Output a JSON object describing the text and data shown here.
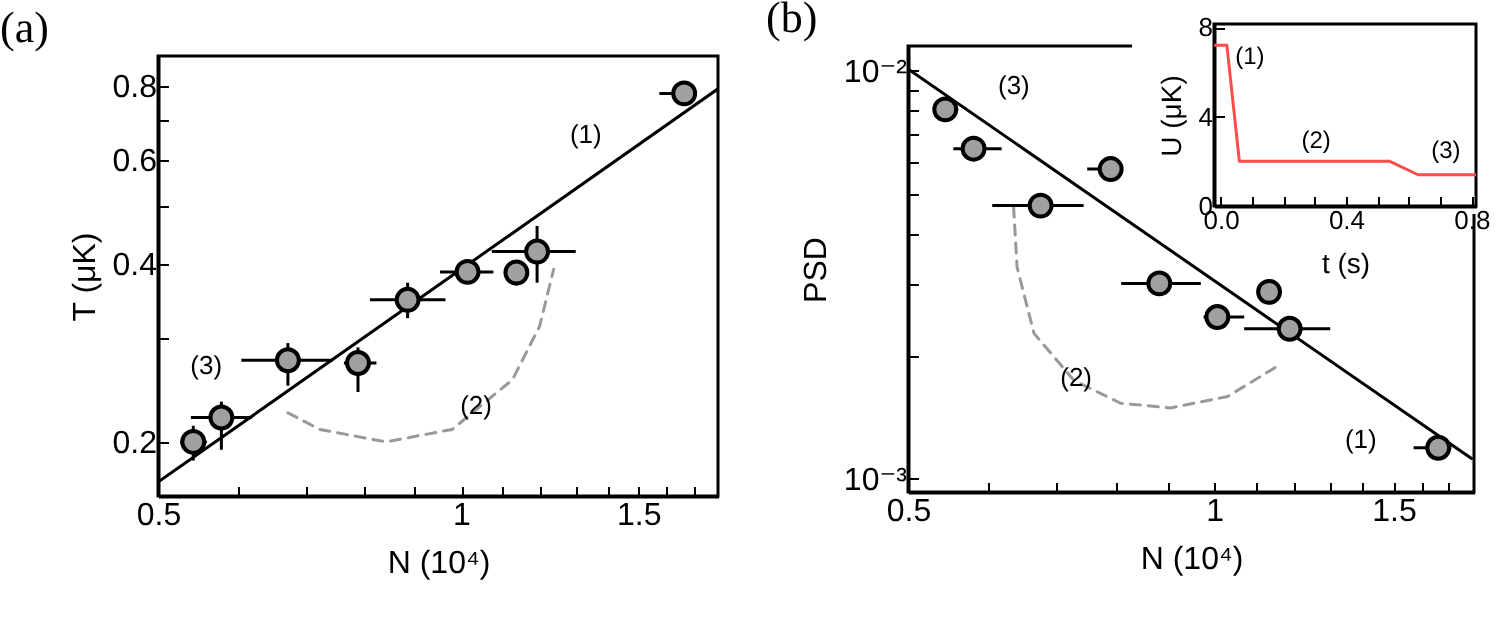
{
  "chart_data": [
    {
      "type": "scatter",
      "title": "(a)",
      "xlabel": "N (10⁴)",
      "ylabel": "T (μK)",
      "log": "xy",
      "xlim": [
        0.5,
        1.8
      ],
      "xticks": [
        0.5,
        {
          "value": 0.6,
          "label": null
        },
        {
          "value": 0.7,
          "label": null
        },
        {
          "value": 0.8,
          "label": null
        },
        {
          "value": 0.9,
          "label": null
        },
        1,
        {
          "value": 1.1,
          "label": null
        },
        {
          "value": 1.2,
          "label": null
        },
        {
          "value": 1.3,
          "label": null
        },
        {
          "value": 1.4,
          "label": null
        },
        1.5,
        {
          "value": 1.6,
          "label": null
        },
        {
          "value": 1.7,
          "label": null
        }
      ],
      "ylim": [
        0.162,
        0.9
      ],
      "yticks": [
        0.2,
        {
          "value": 0.3,
          "label": null
        },
        0.4,
        {
          "value": 0.5,
          "label": null
        },
        0.6,
        {
          "value": 0.7,
          "label": null
        },
        0.8
      ],
      "series": [
        {
          "type": "line",
          "color": "#000000",
          "x": [
            0.5,
            1.8
          ],
          "values": [
            0.171,
            0.792
          ]
        },
        {
          "type": "line",
          "color": "#999999",
          "line_style": "dashed",
          "x": [
            0.673,
            0.724,
            0.842,
            0.98,
            1.125,
            1.197,
            1.236
          ],
          "values": [
            0.224,
            0.21,
            0.2,
            0.21,
            0.255,
            0.314,
            0.392
          ]
        },
        {
          "type": "scatter",
          "marker": "circle",
          "color": "#a0a0a0",
          "x": [
            0.542,
            0.578,
            0.673,
            0.79,
            0.885,
            1.015,
            1.135,
            1.19,
            1.666
          ],
          "values": [
            0.2,
            0.22,
            0.275,
            0.272,
            0.348,
            0.388,
            0.387,
            0.42,
            0.778
          ],
          "errors": [
            [
              0.186,
              0.213
            ],
            [
              0.194,
              0.234
            ],
            [
              0.249,
              0.294
            ],
            [
              0.243,
              0.289
            ],
            [
              0.324,
              0.372
            ],
            [
              0.38,
              0.397
            ],
            [
              0.368,
              0.401
            ],
            [
              0.372,
              0.464
            ],
            null
          ],
          "xerrors": [
            [
              0.526,
              0.559
            ],
            [
              0.539,
              0.62
            ],
            [
              0.605,
              0.746
            ],
            [
              0.765,
              0.824
            ],
            [
              0.812,
              0.965
            ],
            [
              0.953,
              1.077
            ],
            [
              1.11,
              1.16
            ],
            [
              1.073,
              1.3
            ],
            [
              1.574,
              1.712
            ]
          ]
        }
      ],
      "annotations": [
        "(1)",
        "(2)",
        "(3)"
      ]
    },
    {
      "type": "scatter",
      "title": "(b)",
      "xlabel": "N (10⁴)",
      "ylabel": "PSD",
      "log": "xy",
      "xlim": [
        0.5,
        1.8
      ],
      "xticks": [
        0.5,
        {
          "value": 0.6,
          "label": null
        },
        {
          "value": 0.7,
          "label": null
        },
        {
          "value": 0.8,
          "label": null
        },
        {
          "value": 0.9,
          "label": null
        },
        1,
        {
          "value": 1.1,
          "label": null
        },
        {
          "value": 1.2,
          "label": null
        },
        {
          "value": 1.3,
          "label": null
        },
        {
          "value": 1.4,
          "label": null
        },
        1.5,
        {
          "value": 1.6,
          "label": null
        },
        {
          "value": 1.7,
          "label": null
        }
      ],
      "ylim": [
        0.000927,
        0.0115
      ],
      "yticks": [
        {
          "value": 0.001,
          "label": "10⁻³"
        },
        {
          "value": 0.002,
          "label": null
        },
        {
          "value": 0.003,
          "label": null
        },
        {
          "value": 0.004,
          "label": null
        },
        {
          "value": 0.005,
          "label": null
        },
        {
          "value": 0.006,
          "label": null
        },
        {
          "value": 0.007,
          "label": null
        },
        {
          "value": 0.008,
          "label": null
        },
        {
          "value": 0.009,
          "label": null
        },
        {
          "value": 0.01,
          "label": "10⁻²"
        }
      ],
      "series": [
        {
          "type": "line",
          "color": "#000000",
          "x": [
            0.5,
            1.79
          ],
          "values": [
            0.0101,
            0.00112
          ]
        },
        {
          "type": "line",
          "color": "#999999",
          "line_style": "dashed",
          "x": [
            0.635,
            0.64,
            0.665,
            0.728,
            0.809,
            0.906,
            1.031,
            1.163
          ],
          "values": [
            0.00463,
            0.0033,
            0.00227,
            0.00174,
            0.00153,
            0.00149,
            0.00159,
            0.00191
          ]
        },
        {
          "type": "scatter",
          "marker": "circle",
          "color": "#a0a0a0",
          "x": [
            0.544,
            0.58,
            0.675,
            0.791,
            0.883,
            1.007,
            1.132,
            1.186,
            1.66
          ],
          "values": [
            0.00804,
            0.00644,
            0.00467,
            0.00574,
            0.00301,
            0.00249,
            0.00287,
            0.00233,
            0.00119
          ],
          "xerrors": [
            [
              0.53,
              0.56
            ],
            [
              0.554,
              0.618
            ],
            [
              0.605,
              0.744
            ],
            [
              0.75,
              0.81
            ],
            [
              0.81,
              0.97
            ],
            [
              0.976,
              1.07
            ],
            [
              1.11,
              1.16
            ],
            [
              1.07,
              1.3
            ],
            [
              1.57,
              1.71
            ]
          ]
        }
      ],
      "annotations": [
        "(3)",
        "(2)",
        "(1)"
      ]
    },
    {
      "type": "line",
      "xlabel": "t (s)",
      "ylabel": "U (μK)",
      "xlim": [
        -0.021,
        0.815
      ],
      "xticks": [
        {
          "value": 0,
          "label": "0.0"
        },
        {
          "value": 0.1,
          "label": null
        },
        {
          "value": 0.2,
          "label": null
        },
        {
          "value": 0.3,
          "label": null
        },
        0.4,
        {
          "value": 0.5,
          "label": null
        },
        {
          "value": 0.6,
          "label": null
        },
        {
          "value": 0.7,
          "label": null
        },
        0.8
      ],
      "ylim": [
        0,
        8.15
      ],
      "yticks": [
        0,
        4,
        8
      ],
      "series": [
        {
          "color": "#ff4c4c",
          "x": [
            -0.021,
            0.02,
            0.06,
            0.54,
            0.63,
            0.815
          ],
          "values": [
            7.2,
            7.2,
            2.0,
            2.0,
            1.4,
            1.4
          ]
        }
      ],
      "annotations": [
        "(1)",
        "(2)",
        "(3)"
      ]
    }
  ]
}
